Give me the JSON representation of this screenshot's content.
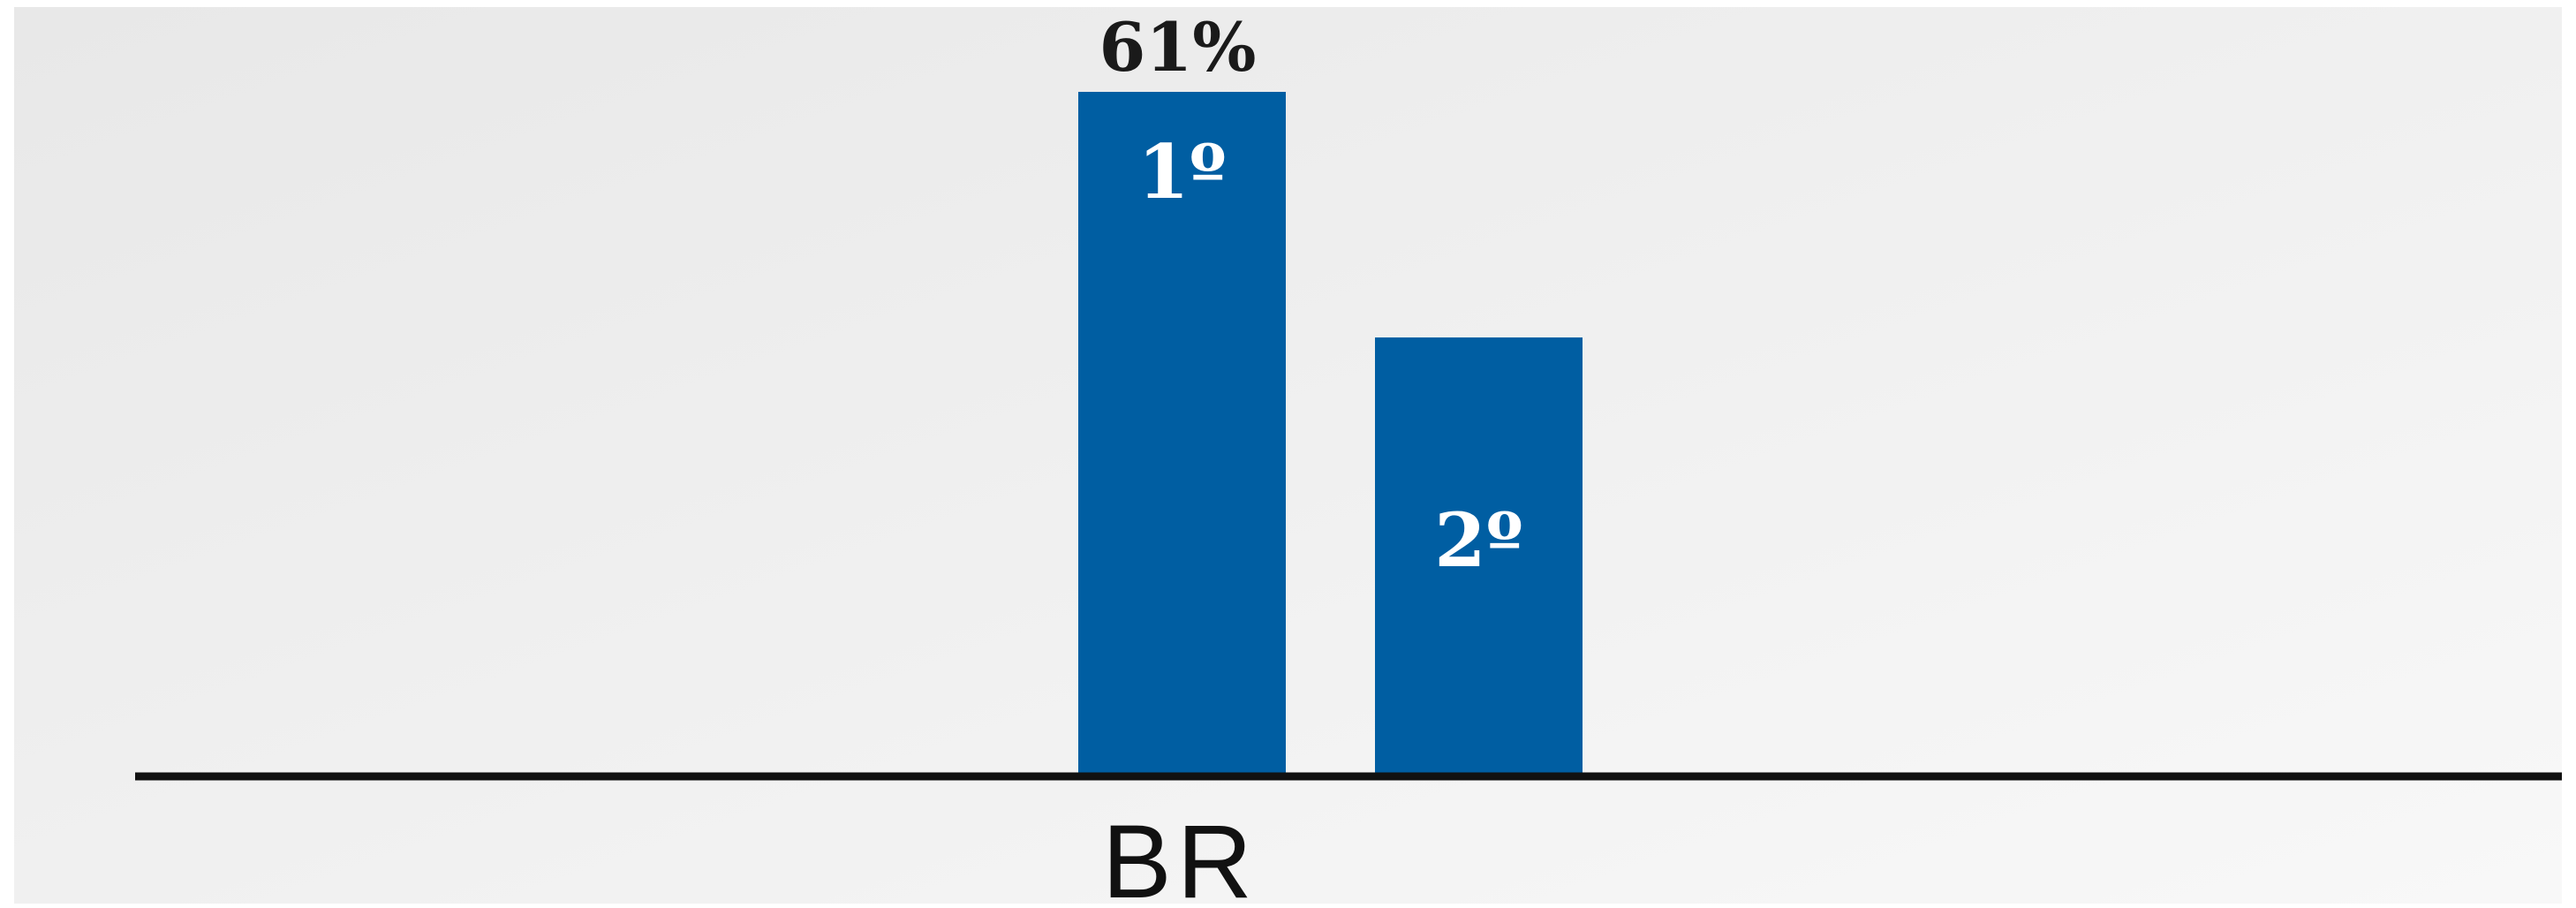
{
  "chart_data": {
    "type": "bar",
    "categories": [
      "BR"
    ],
    "series": [
      {
        "label": "1º",
        "value": 61,
        "value_label": "61%"
      },
      {
        "label": "2º",
        "value": 39,
        "value_label": ""
      }
    ],
    "title": "",
    "xlabel": "",
    "ylabel": "",
    "ylim": [
      0,
      61
    ],
    "grid": false,
    "legend": "none",
    "colors": {
      "bar": "#005ea2",
      "bar_label": "#ffffff",
      "value_label": "#1a1a1a",
      "axis": "#111111",
      "background_start": "#e8e8e8",
      "background_end": "#f8f8f8"
    }
  }
}
